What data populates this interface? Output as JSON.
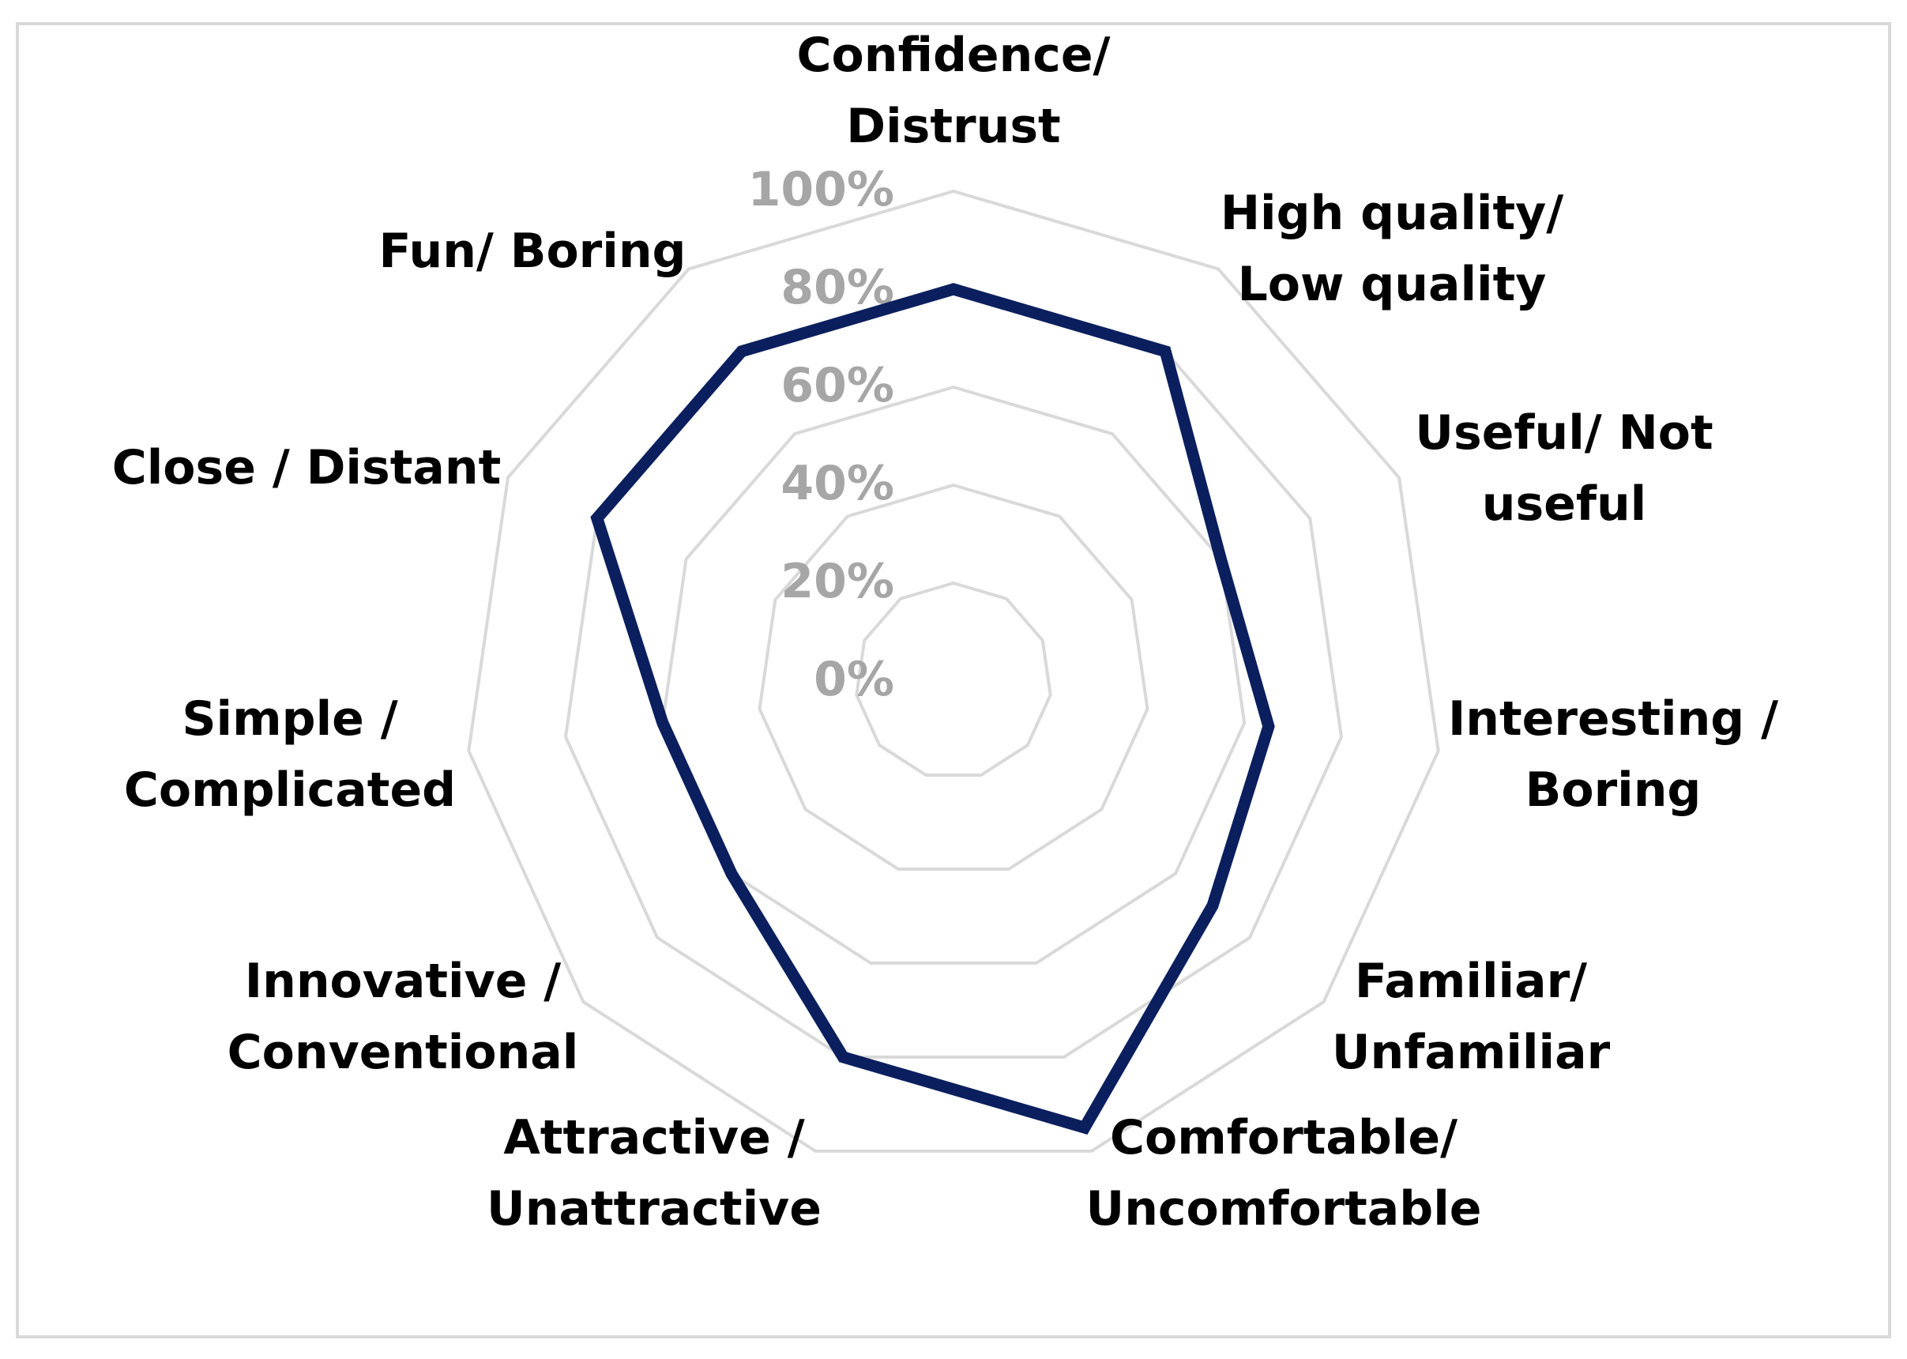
{
  "chart_data": {
    "type": "radar",
    "title": "",
    "axes": [
      [
        "Confidence/",
        "Distrust"
      ],
      [
        "High quality/",
        "Low quality"
      ],
      [
        "Useful/ Not",
        "useful"
      ],
      [
        "Interesting /",
        "Boring"
      ],
      [
        "Familiar/",
        "Unfamiliar"
      ],
      [
        "Comfortable/",
        "Uncomfortable"
      ],
      [
        "Attractive /",
        "Unattractive"
      ],
      [
        "Innovative /",
        "Conventional"
      ],
      [
        "Simple /",
        "Complicated"
      ],
      [
        "Close / Distant"
      ],
      [
        "Fun/ Boring"
      ]
    ],
    "series": [
      {
        "values": [
          80,
          80,
          60,
          65,
          70,
          95,
          80,
          60,
          60,
          80,
          80
        ]
      }
    ],
    "ticks": [
      "0%",
      "20%",
      "40%",
      "60%",
      "80%",
      "100%"
    ],
    "range": [
      0,
      100
    ],
    "grid": true,
    "legend": "none",
    "colors": {
      "series": "#0b1f5e",
      "grid": "#d9d9d9",
      "ticks": "#a6a6a6",
      "labels": "#000000"
    }
  }
}
